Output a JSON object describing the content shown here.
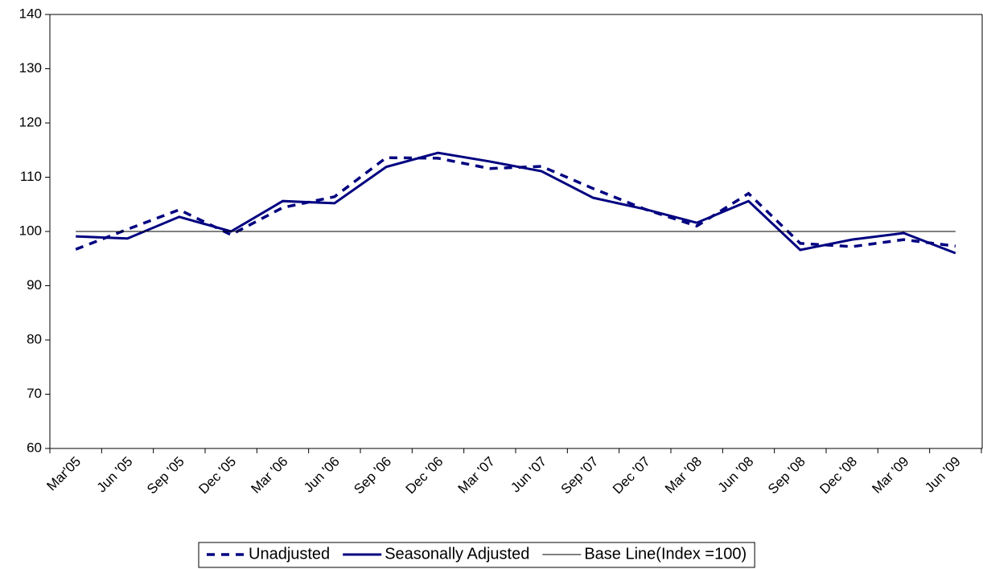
{
  "chart_data": {
    "type": "line",
    "categories": [
      "Mar'05",
      "Jun '05",
      "Sep '05",
      "Dec '05",
      "Mar '06",
      "Jun '06",
      "Sep '06",
      "Dec '06",
      "Mar '07",
      "Jun '07",
      "Sep '07",
      "Dec '07",
      "Mar '08",
      "Jun '08",
      "Sep '08",
      "Dec '08",
      "Mar '09",
      "Jun '09"
    ],
    "series": [
      {
        "name": "Unadjusted",
        "color": "#000080",
        "style": "dashed",
        "width": 3.5,
        "values": [
          96.7,
          100.4,
          104.0,
          99.4,
          104.4,
          106.4,
          113.6,
          113.5,
          111.6,
          112.0,
          107.9,
          104.1,
          101.0,
          107.0,
          97.8,
          97.2,
          98.5,
          97.3
        ]
      },
      {
        "name": "Seasonally Adjusted",
        "color": "#000080",
        "style": "solid",
        "width": 3,
        "values": [
          99.1,
          98.7,
          102.7,
          100.0,
          105.6,
          105.2,
          111.9,
          114.5,
          112.9,
          111.1,
          106.2,
          104.1,
          101.6,
          105.6,
          96.6,
          98.5,
          99.7,
          96.0
        ]
      },
      {
        "name": "Base Line(Index =100)",
        "color": "#000000",
        "style": "solid",
        "width": 1,
        "values": [
          100,
          100,
          100,
          100,
          100,
          100,
          100,
          100,
          100,
          100,
          100,
          100,
          100,
          100,
          100,
          100,
          100,
          100
        ]
      }
    ],
    "ylim": [
      60,
      140
    ],
    "yticks": [
      60,
      70,
      80,
      90,
      100,
      110,
      120,
      130,
      140
    ],
    "grid": false,
    "legend": "bottom"
  }
}
